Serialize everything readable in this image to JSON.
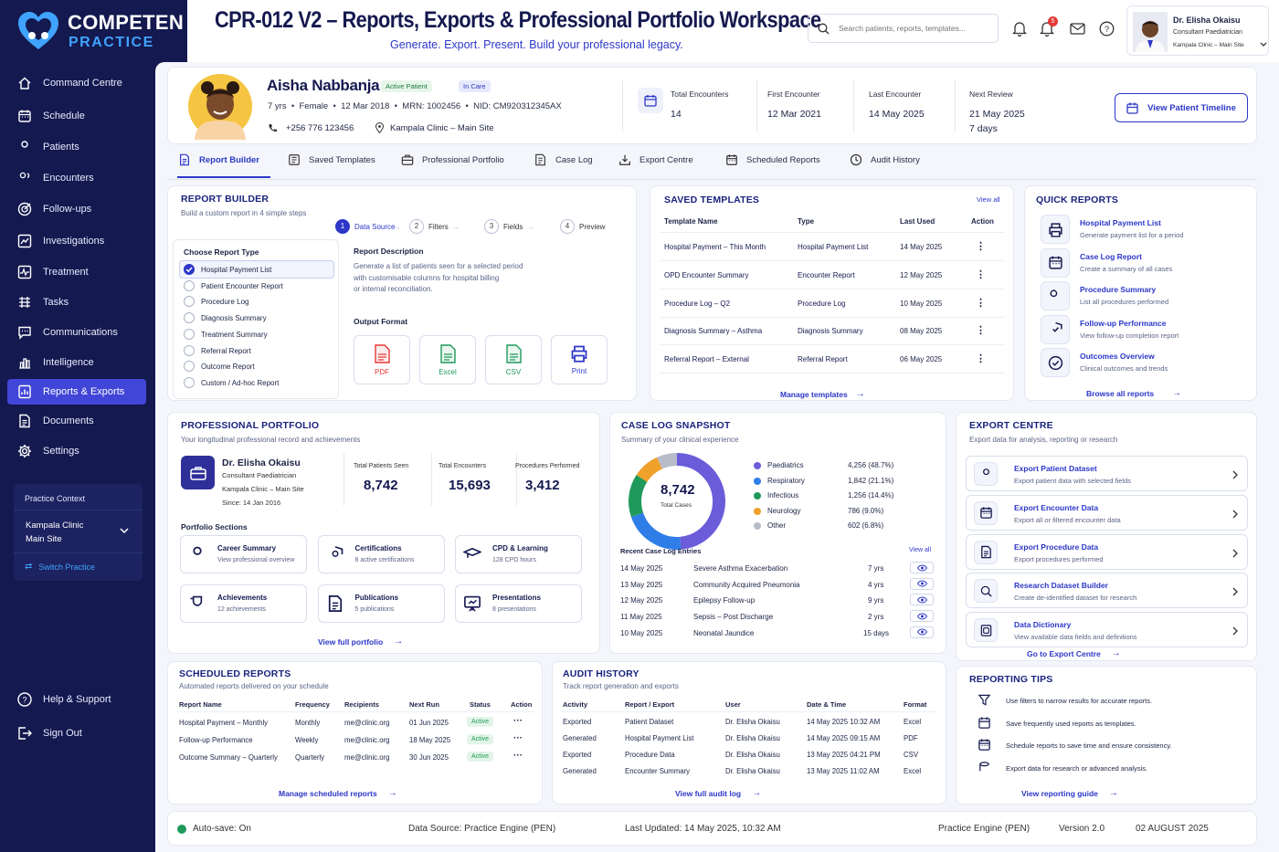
{
  "brand": {
    "line1": "COMPETEN",
    "line2": "PRACTICE"
  },
  "header": {
    "title": "CPR-012 V2 – Reports, Exports & Professional Portfolio Workspace",
    "subtitle": "Generate. Export. Present. Build your professional legacy.",
    "search_placeholder": "Search patients, reports, templates...",
    "notif_count": "5",
    "user_name": "Dr. Elisha Okaisu",
    "user_role": "Consultant Paediatrician",
    "user_site": "Kampala Clinic – Main Site"
  },
  "nav": [
    {
      "label": "Command Centre",
      "icon": "home-icon"
    },
    {
      "label": "Schedule",
      "icon": "calendar-icon"
    },
    {
      "label": "Patients",
      "icon": "user-icon"
    },
    {
      "label": "Encounters",
      "icon": "people-icon"
    },
    {
      "label": "Follow-ups",
      "icon": "target-icon"
    },
    {
      "label": "Investigations",
      "icon": "chart-icon"
    },
    {
      "label": "Treatment",
      "icon": "pulse-icon"
    },
    {
      "label": "Tasks",
      "icon": "tasks-icon"
    },
    {
      "label": "Communications",
      "icon": "chat-icon"
    },
    {
      "label": "Intelligence",
      "icon": "bar-chart-icon"
    },
    {
      "label": "Reports & Exports",
      "icon": "report-icon"
    },
    {
      "label": "Documents",
      "icon": "document-icon"
    },
    {
      "label": "Settings",
      "icon": "gear-icon"
    }
  ],
  "practice": {
    "heading": "Practice Context",
    "site1": "Kampala Clinic",
    "site2": "Main Site",
    "switch": "Switch Practice"
  },
  "help": "Help & Support",
  "signout": "Sign Out",
  "patient": {
    "name": "Aisha Nabbanja",
    "badge1": "Active Patient",
    "badge2": "In Care",
    "age": "7 yrs",
    "sex": "Female",
    "dob": "12 Mar 2018",
    "mrn": "MRN: 1002456",
    "nid": "NID: CM920312345AX",
    "phone": "+256 776 123456",
    "site": "Kampala Clinic – Main Site"
  },
  "stats": [
    {
      "label": "Total Encounters",
      "value": "14"
    },
    {
      "label": "First Encounter",
      "value": "12 Mar 2021"
    },
    {
      "label": "Last Encounter",
      "value": "14 May 2025"
    },
    {
      "label": "Next Review",
      "value": "21 May 2025",
      "extra": "7 days"
    }
  ],
  "timeline_btn": "View Patient Timeline",
  "tabs": [
    "Report Builder",
    "Saved Templates",
    "Professional Portfolio",
    "Case Log",
    "Export Centre",
    "Scheduled Reports",
    "Audit History"
  ],
  "builder": {
    "title": "REPORT BUILDER",
    "sub": "Build a custom report in 4 simple steps",
    "steps": [
      {
        "n": "1",
        "label": "Data Source"
      },
      {
        "n": "2",
        "label": "Filters"
      },
      {
        "n": "3",
        "label": "Fields"
      },
      {
        "n": "4",
        "label": "Preview"
      }
    ],
    "choose": "Choose Report Type",
    "types": [
      "Hospital Payment List",
      "Patient Encounter Report",
      "Procedure Log",
      "Diagnosis Summary",
      "Treatment Summary",
      "Referral Report",
      "Outcome Report",
      "Custom / Ad-hoc Report"
    ],
    "desc_title": "Report Description",
    "desc": [
      "Generate a list of patients seen for a selected period",
      "with customisable columns for hospital billing",
      "or internal reconciliation."
    ],
    "output": "Output Format",
    "formats": [
      "PDF",
      "Excel",
      "CSV",
      "Print"
    ]
  },
  "templates": {
    "title": "SAVED TEMPLATES",
    "view_all": "View all",
    "cols": [
      "Template Name",
      "Type",
      "Last Used",
      "Action"
    ],
    "rows": [
      [
        "Hospital Payment – This Month",
        "Hospital Payment List",
        "14 May 2025"
      ],
      [
        "OPD Encounter Summary",
        "Encounter Report",
        "12 May 2025"
      ],
      [
        "Procedure Log – Q2",
        "Procedure Log",
        "10 May 2025"
      ],
      [
        "Diagnosis Summary – Asthma",
        "Diagnosis Summary",
        "08 May 2025"
      ],
      [
        "Referral Report – External",
        "Referral Report",
        "06 May 2025"
      ]
    ],
    "manage": "Manage templates"
  },
  "quick": {
    "title": "QUICK REPORTS",
    "items": [
      {
        "t": "Hospital Payment List",
        "s": "Generate payment list for a period"
      },
      {
        "t": "Case Log Report",
        "s": "Create a summary of all cases"
      },
      {
        "t": "Procedure Summary",
        "s": "List all procedures performed"
      },
      {
        "t": "Follow-up Performance",
        "s": "View follow-up completion report"
      },
      {
        "t": "Outcomes Overview",
        "s": "Clinical outcomes and trends"
      }
    ],
    "browse": "Browse all reports"
  },
  "portfolio": {
    "title": "PROFESSIONAL PORTFOLIO",
    "sub": "Your longitudinal professional record and achievements",
    "doc": "Dr. Elisha Okaisu",
    "role": "Consultant Paediatrician",
    "site": "Kampala Clinic – Main Site",
    "since": "Since: 14 Jan 2016",
    "kpis": [
      {
        "l": "Total Patients Seen",
        "v": "8,742"
      },
      {
        "l": "Total Encounters",
        "v": "15,693"
      },
      {
        "l": "Procedures Performed",
        "v": "3,412"
      }
    ],
    "sections_title": "Portfolio Sections",
    "sections": [
      {
        "t": "Career Summary",
        "s": "View professional overview"
      },
      {
        "t": "Certifications",
        "s": "8 active certifications"
      },
      {
        "t": "CPD & Learning",
        "s": "128 CPD hours"
      },
      {
        "t": "Achievements",
        "s": "12 achievements"
      },
      {
        "t": "Publications",
        "s": "5 publications"
      },
      {
        "t": "Presentations",
        "s": "8 presentations"
      }
    ],
    "view_full": "View full portfolio"
  },
  "caselog": {
    "title": "CASE LOG SNAPSHOT",
    "sub": "Summary of your clinical experience",
    "total": "8,742",
    "total_label": "Total Cases",
    "segments": [
      {
        "name": "Paediatrics",
        "value": "4,256 (48.7%)",
        "pct": 48.7,
        "color": "#6b5cd9"
      },
      {
        "name": "Respiratory",
        "value": "1,842 (21.1%)",
        "pct": 21.1,
        "color": "#2f7ee8"
      },
      {
        "name": "Infectious",
        "value": "1,256 (14.4%)",
        "pct": 14.4,
        "color": "#1f9a5b"
      },
      {
        "name": "Neurology",
        "value": "786 (9.0%)",
        "pct": 9.0,
        "color": "#f0a12b"
      },
      {
        "name": "Other",
        "value": "602 (6.8%)",
        "pct": 6.8,
        "color": "#b7bcc8"
      }
    ],
    "recent": "Recent Case Log Entries",
    "view_all": "View all",
    "entries": [
      [
        "14 May 2025",
        "Severe Asthma Exacerbation",
        "7 yrs"
      ],
      [
        "13 May 2025",
        "Community Acquired Pneumonia",
        "4 yrs"
      ],
      [
        "12 May 2025",
        "Epilepsy Follow-up",
        "9 yrs"
      ],
      [
        "11 May 2025",
        "Sepsis – Post Discharge",
        "2 yrs"
      ],
      [
        "10 May 2025",
        "Neonatal Jaundice",
        "15 days"
      ]
    ]
  },
  "export": {
    "title": "EXPORT CENTRE",
    "sub": "Export data for analysis, reporting or research",
    "items": [
      {
        "t": "Export Patient Dataset",
        "s": "Export patient data with selected fields"
      },
      {
        "t": "Export Encounter Data",
        "s": "Export all or filtered encounter data"
      },
      {
        "t": "Export Procedure Data",
        "s": "Export procedures performed"
      },
      {
        "t": "Research Dataset Builder",
        "s": "Create de-identified dataset for research"
      },
      {
        "t": "Data Dictionary",
        "s": "View available data fields and definitions"
      }
    ],
    "go": "Go to Export Centre"
  },
  "scheduled": {
    "title": "SCHEDULED REPORTS",
    "sub": "Automated reports delivered on your schedule",
    "cols": [
      "Report Name",
      "Frequency",
      "Recipients",
      "Next Run",
      "Status",
      "Action"
    ],
    "rows": [
      [
        "Hospital Payment – Monthly",
        "Monthly",
        "me@clinic.org",
        "01 Jun 2025",
        "Active"
      ],
      [
        "Follow-up Performance",
        "Weekly",
        "me@clinic.org",
        "18 May 2025",
        "Active"
      ],
      [
        "Outcome Summary – Quarterly",
        "Quarterly",
        "me@clinic.org",
        "30 Jun 2025",
        "Active"
      ]
    ],
    "manage": "Manage scheduled reports"
  },
  "audit": {
    "title": "AUDIT HISTORY",
    "sub": "Track report generation and exports",
    "cols": [
      "Activity",
      "Report / Export",
      "User",
      "Date & Time",
      "Format"
    ],
    "rows": [
      [
        "Exported",
        "Patient Dataset",
        "Dr. Elisha Okaisu",
        "14 May 2025 10:32 AM",
        "Excel"
      ],
      [
        "Generated",
        "Hospital Payment List",
        "Dr. Elisha Okaisu",
        "14 May 2025 09:15 AM",
        "PDF"
      ],
      [
        "Exported",
        "Procedure Data",
        "Dr. Elisha Okaisu",
        "13 May 2025 04:21 PM",
        "CSV"
      ],
      [
        "Generated",
        "Encounter Summary",
        "Dr. Elisha Okaisu",
        "13 May 2025 11:02 AM",
        "Excel"
      ]
    ],
    "view_full": "View full audit log"
  },
  "tips": {
    "title": "REPORTING TIPS",
    "items": [
      "Use filters to narrow results for accurate reports.",
      "Save frequently used reports as templates.",
      "Schedule reports to save time and ensure consistency.",
      "Export data for research or advanced analysis."
    ],
    "guide": "View reporting guide"
  },
  "footer": {
    "autosave": "Auto-save: On",
    "source": "Data Source: Practice Engine (PEN)",
    "updated": "Last Updated: 14 May 2025, 10:32 AM",
    "engine": "Practice Engine (PEN)",
    "version": "Version 2.0",
    "date": "02 AUGUST 2025"
  },
  "colors": {
    "navy": "#14194f",
    "accent": "#4146d8",
    "link": "#2c37c8",
    "active_green": "#1f9a5b"
  }
}
